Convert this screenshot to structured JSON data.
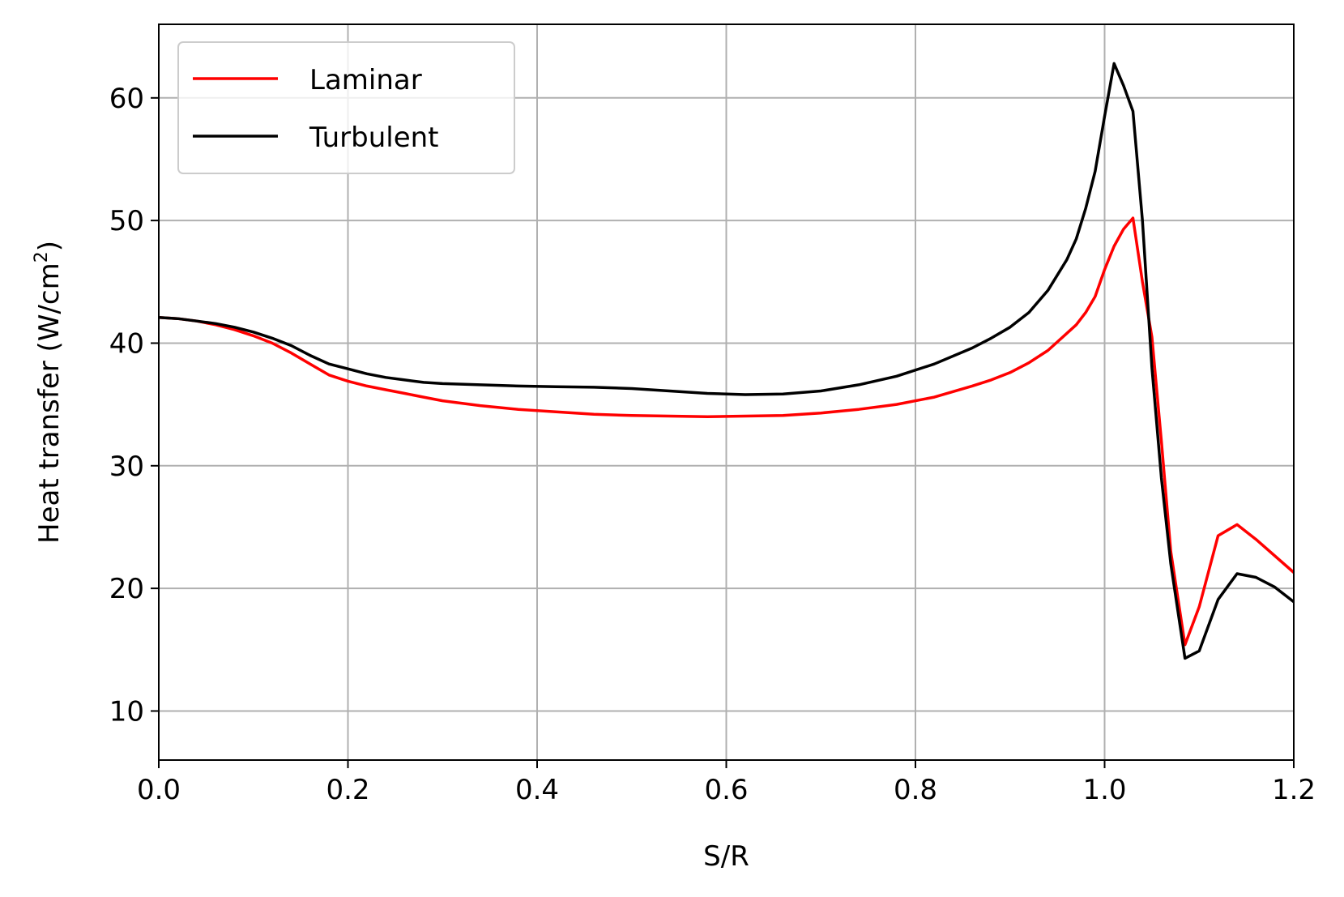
{
  "chart_data": {
    "type": "line",
    "xlabel": "S/R",
    "ylabel_main": "Heat transfer (W/cm",
    "ylabel_sup": "2",
    "ylabel_end": ")",
    "xlim": [
      0.0,
      1.2
    ],
    "ylim": [
      6,
      66
    ],
    "xticks": [
      0.0,
      0.2,
      0.4,
      0.6,
      0.8,
      1.0,
      1.2
    ],
    "xtick_labels": [
      "0.0",
      "0.2",
      "0.4",
      "0.6",
      "0.8",
      "1.0",
      "1.2"
    ],
    "yticks": [
      10,
      20,
      30,
      40,
      50,
      60
    ],
    "ytick_labels": [
      "10",
      "20",
      "30",
      "40",
      "50",
      "60"
    ],
    "grid": true,
    "legend_position": "top-left",
    "series": [
      {
        "name": "Laminar",
        "color": "#ff0000",
        "x": [
          0.0,
          0.02,
          0.04,
          0.06,
          0.08,
          0.1,
          0.12,
          0.14,
          0.16,
          0.18,
          0.2,
          0.22,
          0.24,
          0.26,
          0.28,
          0.3,
          0.34,
          0.38,
          0.42,
          0.46,
          0.5,
          0.54,
          0.58,
          0.62,
          0.66,
          0.7,
          0.74,
          0.78,
          0.82,
          0.86,
          0.88,
          0.9,
          0.92,
          0.94,
          0.96,
          0.97,
          0.98,
          0.99,
          1.0,
          1.01,
          1.02,
          1.03,
          1.04,
          1.05,
          1.06,
          1.07,
          1.085,
          1.1,
          1.12,
          1.14,
          1.16,
          1.2
        ],
        "y": [
          42.1,
          42.0,
          41.8,
          41.5,
          41.1,
          40.6,
          40.0,
          39.2,
          38.3,
          37.4,
          36.9,
          36.5,
          36.2,
          35.9,
          35.6,
          35.3,
          34.9,
          34.6,
          34.4,
          34.2,
          34.1,
          34.05,
          34.0,
          34.05,
          34.1,
          34.3,
          34.6,
          35.0,
          35.6,
          36.5,
          37.0,
          37.6,
          38.4,
          39.4,
          40.8,
          41.5,
          42.5,
          43.8,
          46.0,
          47.9,
          49.3,
          50.2,
          45.0,
          40.5,
          32.0,
          23.0,
          15.4,
          18.5,
          24.3,
          25.2,
          24.0,
          21.3
        ]
      },
      {
        "name": "Turbulent",
        "color": "#000000",
        "x": [
          0.0,
          0.02,
          0.04,
          0.06,
          0.08,
          0.1,
          0.12,
          0.14,
          0.16,
          0.18,
          0.2,
          0.22,
          0.24,
          0.26,
          0.28,
          0.3,
          0.34,
          0.38,
          0.42,
          0.46,
          0.5,
          0.54,
          0.58,
          0.62,
          0.66,
          0.7,
          0.74,
          0.78,
          0.82,
          0.86,
          0.88,
          0.9,
          0.92,
          0.94,
          0.96,
          0.97,
          0.98,
          0.99,
          1.0,
          1.01,
          1.02,
          1.03,
          1.04,
          1.05,
          1.06,
          1.07,
          1.085,
          1.1,
          1.12,
          1.14,
          1.16,
          1.18,
          1.2
        ],
        "y": [
          42.1,
          42.0,
          41.8,
          41.6,
          41.3,
          40.9,
          40.4,
          39.8,
          39.0,
          38.3,
          37.9,
          37.5,
          37.2,
          37.0,
          36.8,
          36.7,
          36.6,
          36.5,
          36.45,
          36.4,
          36.3,
          36.1,
          35.9,
          35.8,
          35.85,
          36.1,
          36.6,
          37.3,
          38.3,
          39.6,
          40.4,
          41.3,
          42.5,
          44.3,
          46.8,
          48.5,
          51.0,
          54.0,
          58.5,
          62.8,
          61.0,
          58.9,
          50.0,
          38.0,
          29.0,
          22.0,
          14.3,
          14.9,
          19.1,
          21.2,
          20.9,
          20.1,
          18.9
        ]
      }
    ]
  }
}
